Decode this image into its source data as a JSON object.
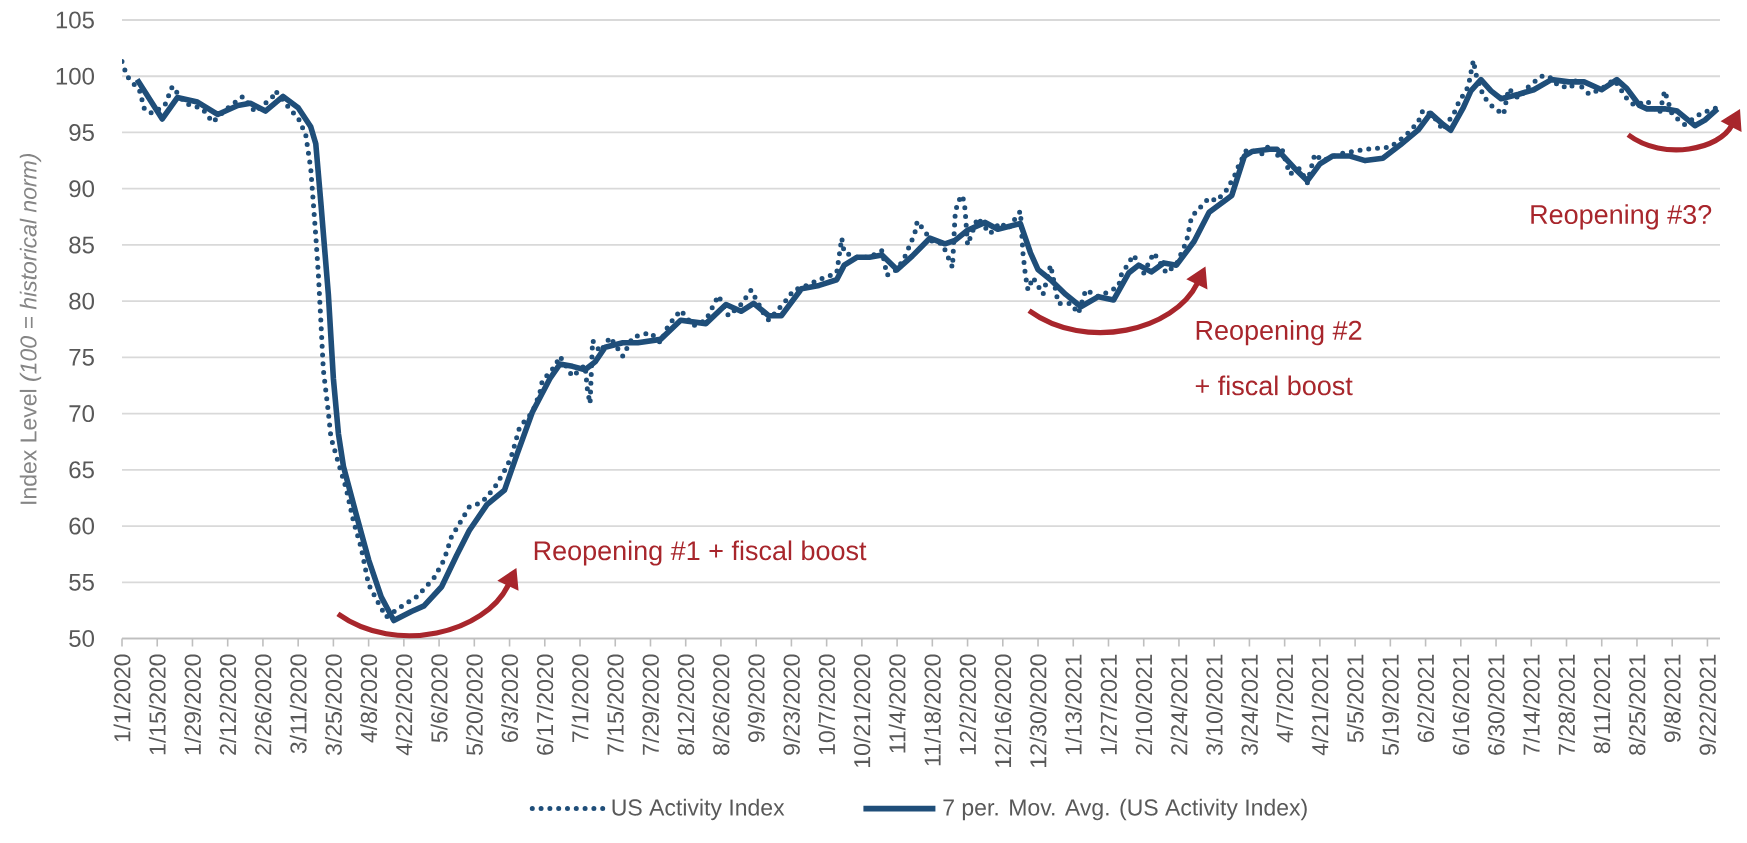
{
  "chart_data": {
    "type": "line",
    "ylabel": "Index Level *(100 = historical norm)*",
    "xlim": [
      "2020-01-01",
      "2021-09-27"
    ],
    "ylim": [
      50,
      105
    ],
    "yticks": [
      50,
      55,
      60,
      65,
      70,
      75,
      80,
      85,
      90,
      95,
      100,
      105
    ],
    "xticks": [
      {
        "value": "2020-01-01",
        "label": "1/1/2020"
      },
      {
        "value": "2020-01-15",
        "label": "1/15/2020"
      },
      {
        "value": "2020-01-29",
        "label": "1/29/2020"
      },
      {
        "value": "2020-02-12",
        "label": "2/12/2020"
      },
      {
        "value": "2020-02-26",
        "label": "2/26/2020"
      },
      {
        "value": "2020-03-11",
        "label": "3/11/2020"
      },
      {
        "value": "2020-03-25",
        "label": "3/25/2020"
      },
      {
        "value": "2020-04-08",
        "label": "4/8/2020"
      },
      {
        "value": "2020-04-22",
        "label": "4/22/2020"
      },
      {
        "value": "2020-05-06",
        "label": "5/6/2020"
      },
      {
        "value": "2020-05-20",
        "label": "5/20/2020"
      },
      {
        "value": "2020-06-03",
        "label": "6/3/2020"
      },
      {
        "value": "2020-06-17",
        "label": "6/17/2020"
      },
      {
        "value": "2020-07-01",
        "label": "7/1/2020"
      },
      {
        "value": "2020-07-15",
        "label": "7/15/2020"
      },
      {
        "value": "2020-07-29",
        "label": "7/29/2020"
      },
      {
        "value": "2020-08-12",
        "label": "8/12/2020"
      },
      {
        "value": "2020-08-26",
        "label": "8/26/2020"
      },
      {
        "value": "2020-09-09",
        "label": "9/9/2020"
      },
      {
        "value": "2020-09-23",
        "label": "9/23/2020"
      },
      {
        "value": "2020-10-07",
        "label": "10/7/2020"
      },
      {
        "value": "2020-10-21",
        "label": "10/21/2020"
      },
      {
        "value": "2020-11-04",
        "label": "11/4/2020"
      },
      {
        "value": "2020-11-18",
        "label": "11/18/2020"
      },
      {
        "value": "2020-12-02",
        "label": "12/2/2020"
      },
      {
        "value": "2020-12-16",
        "label": "12/16/2020"
      },
      {
        "value": "2020-12-30",
        "label": "12/30/2020"
      },
      {
        "value": "2021-01-13",
        "label": "1/13/2021"
      },
      {
        "value": "2021-01-27",
        "label": "1/27/2021"
      },
      {
        "value": "2021-02-10",
        "label": "2/10/2021"
      },
      {
        "value": "2021-02-24",
        "label": "2/24/2021"
      },
      {
        "value": "2021-03-10",
        "label": "3/10/2021"
      },
      {
        "value": "2021-03-24",
        "label": "3/24/2021"
      },
      {
        "value": "2021-04-07",
        "label": "4/7/2021"
      },
      {
        "value": "2021-04-21",
        "label": "4/21/2021"
      },
      {
        "value": "2021-05-05",
        "label": "5/5/2021"
      },
      {
        "value": "2021-05-19",
        "label": "5/19/2021"
      },
      {
        "value": "2021-06-02",
        "label": "6/2/2021"
      },
      {
        "value": "2021-06-16",
        "label": "6/16/2021"
      },
      {
        "value": "2021-06-30",
        "label": "6/30/2021"
      },
      {
        "value": "2021-07-14",
        "label": "7/14/2021"
      },
      {
        "value": "2021-07-28",
        "label": "7/28/2021"
      },
      {
        "value": "2021-08-11",
        "label": "8/11/2021"
      },
      {
        "value": "2021-08-25",
        "label": "8/25/2021"
      },
      {
        "value": "2021-09-08",
        "label": "9/8/2021"
      },
      {
        "value": "2021-09-22",
        "label": "9/22/2021"
      }
    ],
    "grid": "y",
    "legend": "bottom",
    "series": [
      {
        "name": "US Activity Index",
        "color": "#1f4e79",
        "line_style": "dotted",
        "x": [
          "2020-01-01",
          "2020-01-03",
          "2020-01-05",
          "2020-01-08",
          "2020-01-10",
          "2020-01-13",
          "2020-01-18",
          "2020-01-21",
          "2020-01-26",
          "2020-02-02",
          "2020-02-06",
          "2020-02-11",
          "2020-02-18",
          "2020-02-23",
          "2020-03-01",
          "2020-03-02",
          "2020-03-08",
          "2020-03-11",
          "2020-03-14",
          "2020-03-16",
          "2020-03-17",
          "2020-03-18",
          "2020-03-19",
          "2020-03-20",
          "2020-03-21",
          "2020-03-23",
          "2020-03-24",
          "2020-03-27",
          "2020-03-30",
          "2020-04-02",
          "2020-04-05",
          "2020-04-08",
          "2020-04-12",
          "2020-04-15",
          "2020-04-20",
          "2020-04-27",
          "2020-04-30",
          "2020-05-04",
          "2020-05-08",
          "2020-05-11",
          "2020-05-13",
          "2020-05-18",
          "2020-05-23",
          "2020-05-28",
          "2020-06-02",
          "2020-06-04",
          "2020-06-07",
          "2020-06-12",
          "2020-06-15",
          "2020-06-16",
          "2020-06-21",
          "2020-06-23",
          "2020-06-28",
          "2020-07-03",
          "2020-07-04",
          "2020-07-05",
          "2020-07-06",
          "2020-07-09",
          "2020-07-13",
          "2020-07-18",
          "2020-07-22",
          "2020-07-29",
          "2020-08-02",
          "2020-08-05",
          "2020-08-10",
          "2020-08-15",
          "2020-08-20",
          "2020-08-25",
          "2020-08-29",
          "2020-09-03",
          "2020-09-07",
          "2020-09-12",
          "2020-09-14",
          "2020-09-21",
          "2020-09-24",
          "2020-09-28",
          "2020-10-05",
          "2020-10-11",
          "2020-10-13",
          "2020-10-14",
          "2020-10-19",
          "2020-10-24",
          "2020-10-29",
          "2020-10-31",
          "2020-11-04",
          "2020-11-07",
          "2020-11-11",
          "2020-11-12",
          "2020-11-18",
          "2020-11-22",
          "2020-11-26",
          "2020-11-27",
          "2020-11-28",
          "2020-11-30",
          "2020-12-01",
          "2020-12-02",
          "2020-12-06",
          "2020-12-11",
          "2020-12-15",
          "2020-12-18",
          "2020-12-23",
          "2020-12-24",
          "2020-12-25",
          "2020-12-26",
          "2020-12-28",
          "2021-01-01",
          "2021-01-04",
          "2021-01-06",
          "2021-01-07",
          "2021-01-12",
          "2021-01-15",
          "2021-01-18",
          "2021-01-23",
          "2021-01-31",
          "2021-02-01",
          "2021-02-06",
          "2021-02-10",
          "2021-02-14",
          "2021-02-19",
          "2021-02-23",
          "2021-02-27",
          "2021-03-01",
          "2021-03-08",
          "2021-03-11",
          "2021-03-15",
          "2021-03-18",
          "2021-03-20",
          "2021-03-23",
          "2021-03-29",
          "2021-04-01",
          "2021-04-04",
          "2021-04-06",
          "2021-04-09",
          "2021-04-13",
          "2021-04-16",
          "2021-04-19",
          "2021-04-22",
          "2021-04-29",
          "2021-05-09",
          "2021-05-19",
          "2021-05-25",
          "2021-05-30",
          "2021-06-01",
          "2021-06-05",
          "2021-06-09",
          "2021-06-14",
          "2021-06-15",
          "2021-06-19",
          "2021-06-20",
          "2021-06-21",
          "2021-06-22",
          "2021-06-25",
          "2021-06-29",
          "2021-07-03",
          "2021-07-05",
          "2021-07-09",
          "2021-07-12",
          "2021-07-18",
          "2021-07-21",
          "2021-07-25",
          "2021-07-30",
          "2021-07-31",
          "2021-08-06",
          "2021-08-11",
          "2021-08-16",
          "2021-08-21",
          "2021-08-24",
          "2021-08-29",
          "2021-09-03",
          "2021-09-05",
          "2021-09-08",
          "2021-09-13",
          "2021-09-18",
          "2021-09-23",
          "2021-09-26"
        ],
        "values": [
          101.3,
          100.0,
          99.5,
          98.7,
          97.0,
          96.7,
          97.4,
          99.1,
          97.6,
          97.1,
          95.9,
          97.0,
          98.2,
          96.8,
          98.2,
          98.7,
          97.0,
          96.3,
          94.8,
          91.8,
          88.8,
          85.8,
          82.5,
          78.3,
          73.9,
          70.1,
          67.9,
          65.6,
          63.4,
          60.4,
          58.1,
          54.8,
          53.1,
          51.9,
          52.7,
          53.7,
          54.4,
          55.4,
          57.0,
          59.1,
          59.8,
          61.7,
          62.1,
          63.4,
          65.3,
          66.4,
          68.8,
          70.1,
          71.8,
          72.9,
          74.2,
          75.1,
          73.3,
          74.3,
          72.0,
          70.9,
          76.5,
          75.5,
          76.8,
          75.1,
          76.8,
          77.2,
          76.3,
          77.8,
          79.2,
          77.8,
          78.3,
          80.5,
          78.7,
          79.7,
          81.0,
          78.9,
          78.3,
          80.1,
          81.0,
          81.3,
          82.0,
          82.5,
          85.6,
          84.3,
          83.9,
          83.9,
          84.5,
          82.3,
          82.8,
          83.9,
          86.0,
          87.1,
          85.3,
          85.1,
          83.0,
          87.5,
          88.8,
          89.4,
          88.2,
          85.0,
          87.4,
          86.0,
          87.0,
          86.4,
          88.0,
          84.3,
          82.3,
          81.0,
          82.1,
          80.6,
          83.2,
          81.0,
          79.8,
          79.8,
          78.9,
          81.0,
          80.4,
          81.3,
          82.3,
          84.1,
          82.5,
          84.3,
          82.5,
          83.3,
          85.3,
          87.5,
          89.2,
          88.9,
          89.9,
          91.1,
          92.2,
          93.5,
          93.1,
          93.9,
          92.9,
          93.5,
          91.3,
          91.8,
          90.5,
          93.1,
          92.5,
          93.1,
          93.5,
          93.7,
          94.7,
          95.9,
          97.0,
          96.5,
          95.2,
          97.0,
          97.6,
          99.1,
          100.3,
          101.4,
          100.2,
          98.2,
          97.2,
          96.6,
          98.9,
          98.0,
          98.9,
          100.0,
          100.0,
          99.1,
          99.0,
          99.7,
          98.4,
          98.9,
          99.7,
          98.0,
          97.4,
          97.8,
          96.7,
          98.7,
          96.6,
          95.7,
          96.5,
          97.0,
          97.2
        ]
      },
      {
        "name": "7 per. Mov. Avg. (US Activity Index)",
        "color": "#1f4e79",
        "line_style": "solid",
        "x": [
          "2020-01-07",
          "2020-01-17",
          "2020-01-23",
          "2020-01-31",
          "2020-02-08",
          "2020-02-16",
          "2020-02-21",
          "2020-02-27",
          "2020-03-05",
          "2020-03-11",
          "2020-03-16",
          "2020-03-18",
          "2020-03-20",
          "2020-03-23",
          "2020-03-25",
          "2020-03-27",
          "2020-03-29",
          "2020-04-03",
          "2020-04-08",
          "2020-04-13",
          "2020-04-18",
          "2020-04-25",
          "2020-04-30",
          "2020-05-07",
          "2020-05-13",
          "2020-05-18",
          "2020-05-25",
          "2020-06-01",
          "2020-06-06",
          "2020-06-12",
          "2020-06-19",
          "2020-06-23",
          "2020-06-28",
          "2020-07-03",
          "2020-07-07",
          "2020-07-11",
          "2020-07-18",
          "2020-07-24",
          "2020-08-02",
          "2020-08-10",
          "2020-08-20",
          "2020-08-28",
          "2020-09-03",
          "2020-09-08",
          "2020-09-14",
          "2020-09-19",
          "2020-09-27",
          "2020-10-04",
          "2020-10-11",
          "2020-10-14",
          "2020-10-19",
          "2020-10-24",
          "2020-10-29",
          "2020-11-04",
          "2020-11-10",
          "2020-11-17",
          "2020-11-23",
          "2020-11-27",
          "2020-12-02",
          "2020-12-09",
          "2020-12-14",
          "2020-12-23",
          "2020-12-27",
          "2020-12-30",
          "2021-01-04",
          "2021-01-10",
          "2021-01-16",
          "2021-01-23",
          "2021-01-29",
          "2021-02-04",
          "2021-02-08",
          "2021-02-13",
          "2021-02-18",
          "2021-02-23",
          "2021-03-02",
          "2021-03-08",
          "2021-03-17",
          "2021-03-22",
          "2021-03-25",
          "2021-04-01",
          "2021-04-04",
          "2021-04-11",
          "2021-04-16",
          "2021-04-21",
          "2021-04-26",
          "2021-05-03",
          "2021-05-09",
          "2021-05-16",
          "2021-05-23",
          "2021-05-30",
          "2021-06-04",
          "2021-06-09",
          "2021-06-12",
          "2021-06-17",
          "2021-06-20",
          "2021-06-24",
          "2021-06-28",
          "2021-07-02",
          "2021-07-09",
          "2021-07-15",
          "2021-07-22",
          "2021-07-29",
          "2021-08-04",
          "2021-08-11",
          "2021-08-17",
          "2021-08-21",
          "2021-08-26",
          "2021-08-29",
          "2021-09-05",
          "2021-09-10",
          "2021-09-17",
          "2021-09-21",
          "2021-09-26"
        ],
        "values": [
          99.7,
          96.2,
          98.1,
          97.7,
          96.6,
          97.4,
          97.6,
          96.9,
          98.2,
          97.2,
          95.5,
          94.0,
          88.8,
          80.6,
          73.1,
          68.2,
          65.3,
          61.1,
          57.0,
          53.7,
          51.6,
          52.4,
          52.9,
          54.6,
          57.4,
          59.6,
          61.9,
          63.2,
          66.4,
          70.1,
          73.1,
          74.4,
          74.2,
          73.9,
          74.6,
          75.9,
          76.3,
          76.3,
          76.6,
          78.3,
          78.0,
          79.7,
          79.1,
          79.8,
          78.7,
          78.7,
          81.1,
          81.4,
          81.9,
          83.2,
          83.9,
          83.9,
          84.1,
          82.8,
          84.0,
          85.6,
          85.1,
          85.4,
          86.3,
          87.0,
          86.4,
          86.9,
          84.3,
          82.8,
          81.9,
          80.6,
          79.5,
          80.4,
          80.1,
          82.5,
          83.2,
          82.6,
          83.4,
          83.2,
          85.3,
          87.9,
          89.4,
          92.9,
          93.3,
          93.5,
          93.5,
          91.8,
          90.7,
          92.2,
          92.9,
          92.9,
          92.5,
          92.7,
          93.9,
          95.2,
          96.7,
          95.7,
          95.2,
          97.2,
          98.7,
          99.7,
          98.7,
          98.0,
          98.4,
          98.8,
          99.7,
          99.5,
          99.5,
          98.8,
          99.7,
          98.9,
          97.4,
          97.1,
          97.1,
          96.9,
          95.6,
          96.1,
          97.1
        ]
      }
    ],
    "annotations": [
      "Reopening #1 + fiscal boost",
      "Reopening #2",
      "+ fiscal boost",
      "Reopening #3?"
    ]
  }
}
